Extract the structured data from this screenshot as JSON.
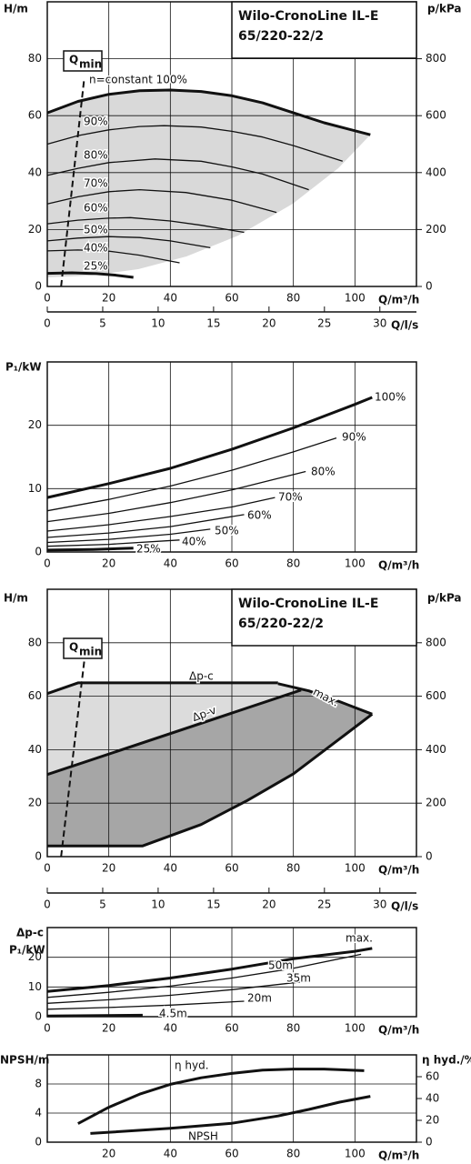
{
  "chart_data": [
    {
      "type": "line",
      "title": [
        "Wilo-CronoLine IL-E",
        "65/220-22/2"
      ],
      "qmin": {
        "main": "Q",
        "sub": "min"
      },
      "y_label": [
        "H/m"
      ],
      "y2_label": "p/kPa",
      "x_label": "Q/m³/h",
      "xlim": [
        0,
        120
      ],
      "xticks": [
        0,
        20,
        40,
        60,
        80,
        100
      ],
      "ylim": [
        0,
        100
      ],
      "yticks": [
        0,
        20,
        40,
        60,
        80
      ],
      "y2lim": [
        0,
        1000
      ],
      "y2ticks": [
        0,
        200,
        400,
        600,
        800
      ],
      "grid": true,
      "color": "#111111",
      "series": [
        {
          "name": "n=constant 100%",
          "bold": true,
          "x": [
            0,
            10,
            20,
            30,
            40,
            50,
            60,
            70,
            80,
            90,
            105
          ],
          "values": [
            61,
            65,
            67.5,
            68.8,
            69,
            68.5,
            67,
            64.5,
            61,
            57.5,
            53.3
          ]
        },
        {
          "name": "90%",
          "x": [
            0,
            10,
            20,
            30,
            38,
            50,
            60,
            70,
            80,
            96
          ],
          "values": [
            50,
            53,
            55,
            56.2,
            56.5,
            56,
            54.5,
            52.5,
            49.5,
            44
          ]
        },
        {
          "name": "80%",
          "x": [
            0,
            10,
            20,
            35,
            50,
            60,
            70,
            85
          ],
          "values": [
            39,
            41.5,
            43.5,
            44.8,
            44,
            42,
            39.5,
            34
          ]
        },
        {
          "name": "70%",
          "x": [
            0,
            10,
            20,
            30,
            45,
            60,
            74.5
          ],
          "values": [
            29,
            31.5,
            33.3,
            34,
            33,
            30.3,
            26
          ]
        },
        {
          "name": "60%",
          "x": [
            0,
            10,
            20,
            27,
            40,
            50,
            64
          ],
          "values": [
            22,
            23.3,
            24,
            24.2,
            23,
            21.5,
            19
          ]
        },
        {
          "name": "50%",
          "x": [
            0,
            10,
            20,
            30,
            40,
            53
          ],
          "values": [
            16,
            17,
            17.5,
            17.2,
            16,
            13.6
          ]
        },
        {
          "name": "40%",
          "x": [
            0,
            10,
            20,
            30,
            43
          ],
          "values": [
            12.5,
            12.8,
            12.4,
            11,
            8.3
          ]
        },
        {
          "name": "25%",
          "bold": true,
          "x": [
            0,
            8,
            16,
            22,
            28
          ],
          "values": [
            4.6,
            4.8,
            4.5,
            4,
            3.2
          ]
        },
        {
          "dash": true,
          "x": [
            4.5,
            12
          ],
          "values": [
            0,
            73
          ]
        }
      ]
    },
    {
      "type": "axis",
      "x_label": "Q/l/s",
      "xlim": [
        0,
        33.3
      ],
      "xticks": [
        0,
        5,
        10,
        15,
        20,
        25,
        30
      ]
    },
    {
      "type": "line",
      "y_label": [
        "P₁/kW"
      ],
      "x_label": "Q/m³/h",
      "xlim": [
        0,
        120
      ],
      "xticks": [
        0,
        20,
        40,
        60,
        80,
        100
      ],
      "ylim": [
        0,
        30
      ],
      "yticks": [
        0,
        10,
        20
      ],
      "grid": true,
      "color": "#111111",
      "series": [
        {
          "name": "100%",
          "bold": true,
          "x": [
            0,
            20,
            40,
            60,
            80,
            100,
            105.6
          ],
          "values": [
            8.6,
            10.8,
            13.2,
            16.2,
            19.6,
            23.3,
            24.4
          ]
        },
        {
          "name": "90%",
          "x": [
            0,
            20,
            40,
            60,
            80,
            94
          ],
          "values": [
            6.5,
            8.3,
            10.4,
            12.9,
            15.8,
            18
          ]
        },
        {
          "name": "80%",
          "x": [
            0,
            20,
            40,
            60,
            84
          ],
          "values": [
            4.8,
            6.1,
            7.8,
            9.8,
            12.7
          ]
        },
        {
          "name": "70%",
          "x": [
            0,
            20,
            40,
            60,
            74
          ],
          "values": [
            3.3,
            4.3,
            5.6,
            7.1,
            8.6
          ]
        },
        {
          "name": "60%",
          "x": [
            0,
            20,
            40,
            64
          ],
          "values": [
            2.3,
            3,
            4,
            5.9
          ]
        },
        {
          "name": "50%",
          "x": [
            0,
            20,
            40,
            53
          ],
          "values": [
            1.5,
            2,
            2.8,
            3.6
          ]
        },
        {
          "name": "40%",
          "x": [
            0,
            20,
            43
          ],
          "values": [
            0.9,
            1.2,
            1.9
          ]
        },
        {
          "name": "25%",
          "bold": true,
          "x": [
            0,
            15,
            28
          ],
          "values": [
            0.3,
            0.4,
            0.6
          ]
        }
      ]
    },
    {
      "type": "line",
      "title": [
        "Wilo-CronoLine IL-E",
        "65/220-22/2"
      ],
      "qmin": {
        "main": "Q",
        "sub": "min"
      },
      "y_label": [
        "H/m"
      ],
      "y2_label": "p/kPa",
      "x_label": "Q/m³/h",
      "xlim": [
        0,
        120
      ],
      "xticks": [
        0,
        20,
        40,
        60,
        80,
        100
      ],
      "ylim": [
        0,
        100
      ],
      "yticks": [
        0,
        20,
        40,
        60,
        80
      ],
      "y2lim": [
        0,
        1000
      ],
      "y2ticks": [
        0,
        200,
        400,
        600,
        800
      ],
      "grid": true,
      "color": "#111111",
      "series": [
        {
          "name": "Δp-c",
          "bold": true,
          "x": [
            0,
            10,
            75
          ],
          "values": [
            61,
            65,
            65
          ]
        },
        {
          "name": "max.",
          "bold": true,
          "x": [
            75,
            85,
            95,
            105.6
          ],
          "values": [
            64.7,
            62,
            58,
            53.3
          ]
        },
        {
          "name": "Δp-v",
          "bold": true,
          "x": [
            0,
            82.5
          ],
          "values": [
            30.7,
            62.3
          ]
        },
        {
          "bold": true,
          "x": [
            0,
            31,
            50,
            65,
            80,
            95,
            105.6
          ],
          "values": [
            4,
            4,
            12,
            21,
            31,
            44,
            53.3
          ]
        },
        {
          "dash": true,
          "x": [
            4.5,
            12
          ],
          "values": [
            0,
            73
          ]
        }
      ]
    },
    {
      "type": "axis",
      "x_label": "Q/l/s",
      "xlim": [
        0,
        33.3
      ],
      "xticks": [
        0,
        5,
        10,
        15,
        20,
        25,
        30
      ]
    },
    {
      "type": "line",
      "y_label": [
        "Δp-c",
        "P₁/kW"
      ],
      "x_label": "Q/m³/h",
      "xlim": [
        0,
        120
      ],
      "xticks": [
        0,
        20,
        40,
        60,
        80,
        100
      ],
      "ylim": [
        0,
        30
      ],
      "yticks": [
        0,
        10,
        20
      ],
      "grid": true,
      "color": "#111111",
      "series": [
        {
          "name": "max.",
          "bold": true,
          "x": [
            0,
            20,
            40,
            60,
            80,
            100,
            105.6
          ],
          "values": [
            8.5,
            10.5,
            13,
            16,
            19.5,
            22,
            23
          ]
        },
        {
          "name": "50m",
          "x": [
            0,
            20,
            40,
            60,
            80,
            102
          ],
          "values": [
            6.5,
            8.2,
            10.3,
            13,
            16.3,
            21
          ]
        },
        {
          "name": "35m",
          "x": [
            0,
            20,
            40,
            60,
            85
          ],
          "values": [
            4.5,
            5.7,
            7.2,
            9.1,
            12
          ]
        },
        {
          "name": "20m",
          "x": [
            0,
            20,
            40,
            64
          ],
          "values": [
            2.5,
            3.1,
            3.9,
            5.2
          ]
        },
        {
          "name": "4.5m",
          "bold": true,
          "x": [
            0,
            31
          ],
          "values": [
            0.2,
            0.5
          ]
        }
      ]
    },
    {
      "type": "line",
      "y_label": [
        "NPSH/m"
      ],
      "y2_label": "η hyd./%",
      "x_label": "Q/m³/h",
      "xlim": [
        0,
        120
      ],
      "xticks": [
        20,
        40,
        60,
        80,
        100
      ],
      "ylim": [
        0,
        12
      ],
      "yticks": [
        0,
        4,
        8
      ],
      "y2lim": [
        0,
        80
      ],
      "y2ticks": [
        0,
        20,
        40,
        60
      ],
      "grid": true,
      "color": "#111111",
      "series": [
        {
          "name": "η hyd.",
          "axis": "y2",
          "bold": true,
          "x": [
            10,
            20,
            30,
            40,
            50,
            60,
            70,
            80,
            90,
            103
          ],
          "values": [
            17,
            32,
            44,
            53,
            59,
            63,
            66,
            67,
            67,
            65.5
          ]
        },
        {
          "name": "NPSH",
          "bold": true,
          "x": [
            14,
            40,
            60,
            75,
            85,
            95,
            105
          ],
          "values": [
            1.2,
            1.9,
            2.6,
            3.6,
            4.5,
            5.5,
            6.3
          ]
        }
      ]
    }
  ]
}
